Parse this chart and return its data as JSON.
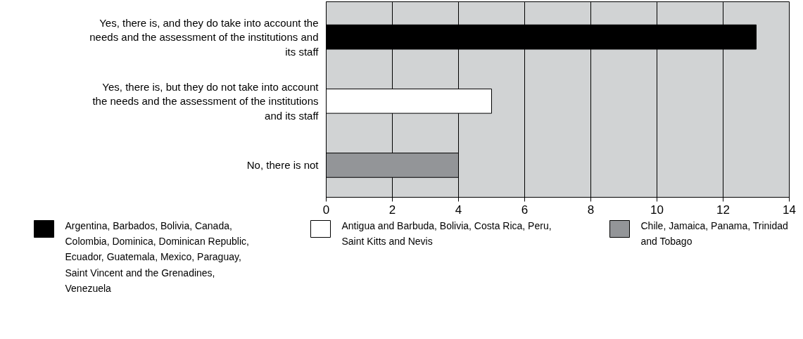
{
  "chart_data": {
    "type": "bar",
    "orientation": "horizontal",
    "stacked": true,
    "categories": [
      "Yes, there is, and they do take into account the needs and the assessment of the institutions and its staff",
      "Yes, there is, but they do not take into account the needs and the assessment of the institutions and its staff",
      "No, there is not"
    ],
    "series": [
      {
        "name": "Argentina, Barbados, Bolivia, Canada, Colombia, Dominica, Dominican Republic, Ecuador, Guatemala, Mexico, Paraguay, Saint Vincent and the Grenadines, Venezuela",
        "color": "#000000",
        "values": [
          13,
          null,
          null
        ]
      },
      {
        "name": "Antigua and Barbuda, Bolivia, Costa Rica, Peru, Saint Kitts and Nevis",
        "color": "#ffffff",
        "values": [
          null,
          5,
          null
        ]
      },
      {
        "name": "Chile, Jamaica, Panama, Trinidad and Tobago",
        "color": "#939598",
        "values": [
          null,
          null,
          4
        ]
      }
    ],
    "xlim": [
      0,
      14
    ],
    "xticks": [
      0,
      2,
      4,
      6,
      8,
      10,
      12,
      14
    ],
    "grid": "x",
    "legend": "bottom"
  }
}
